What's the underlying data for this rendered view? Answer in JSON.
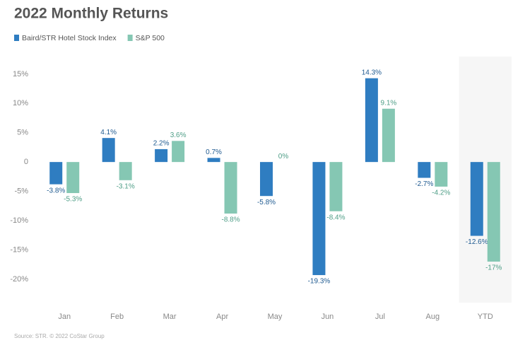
{
  "chart_data": {
    "type": "bar",
    "title": "2022 Monthly Returns",
    "categories": [
      "Jan",
      "Feb",
      "Mar",
      "Apr",
      "May",
      "Jun",
      "Jul",
      "Aug",
      "YTD"
    ],
    "series": [
      {
        "name": "Baird/STR Hotel Stock Index",
        "color": "#2f7dc1",
        "values": [
          -3.8,
          4.1,
          2.2,
          0.7,
          -5.8,
          -19.3,
          14.3,
          -2.7,
          -12.6
        ],
        "value_labels": [
          "-3.8%",
          "4.1%",
          "2.2%",
          "0.7%",
          "-5.8%",
          "-19.3%",
          "14.3%",
          "-2.7%",
          "-12.6%"
        ]
      },
      {
        "name": "S&P 500",
        "color": "#85c7b3",
        "values": [
          -5.3,
          -3.1,
          3.6,
          -8.8,
          0,
          -8.4,
          9.1,
          -4.2,
          -17
        ],
        "value_labels": [
          "-5.3%",
          "-3.1%",
          "3.6%",
          "-8.8%",
          "0%",
          "-8.4%",
          "9.1%",
          "-4.2%",
          "-17%"
        ]
      }
    ],
    "ylim": [
      -24,
      18
    ],
    "yticks": [
      {
        "value": -20,
        "label": "-20%"
      },
      {
        "value": -15,
        "label": "-15%"
      },
      {
        "value": -10,
        "label": "-10%"
      },
      {
        "value": -5,
        "label": "-5%"
      },
      {
        "value": 0,
        "label": "0"
      },
      {
        "value": 5,
        "label": "5%"
      },
      {
        "value": 10,
        "label": "10%"
      },
      {
        "value": 15,
        "label": "15%"
      }
    ],
    "highlight_index": 8,
    "source": "Source: STR. © 2022 CoStar Group"
  }
}
